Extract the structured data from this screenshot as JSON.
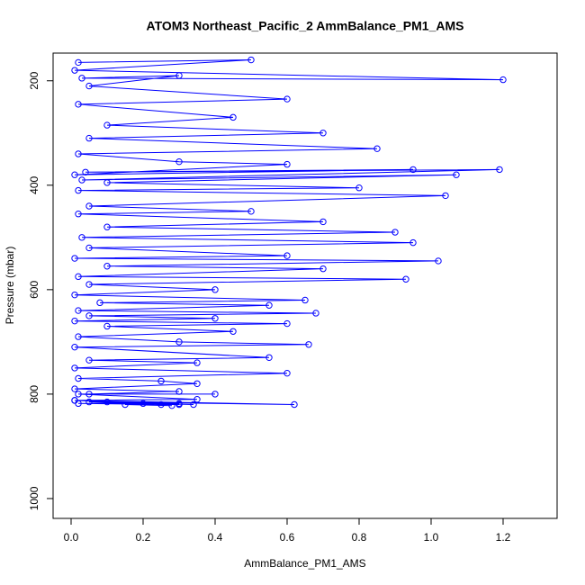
{
  "chart_data": {
    "type": "line",
    "title": "ATOM3 Northeast_Pacific_2 AmmBalance_PM1_AMS",
    "x_label": "AmmBalance_PM1_AMS",
    "y_label": "Pressure (mbar)",
    "xlim": [
      -0.05,
      1.35
    ],
    "ylim": [
      1038,
      147
    ],
    "y_reversed": true,
    "xticks": [
      {
        "value": 0,
        "label": "0.0"
      },
      0.2,
      0.4,
      0.6,
      0.8,
      {
        "value": 1,
        "label": "1.0"
      },
      1.2
    ],
    "yticks": [
      200,
      400,
      600,
      800,
      1000
    ],
    "markers": true,
    "series": [
      {
        "color": "#0000ff",
        "x": [
          0.02,
          0.5,
          0.01,
          1.2,
          0.03,
          0.3,
          0.05,
          0.6,
          0.02,
          0.45,
          0.1,
          0.7,
          0.05,
          0.85,
          0.02,
          0.3,
          0.6,
          0.01,
          0.95,
          0.04,
          1.19,
          0.03,
          1.07,
          0.1,
          0.8,
          0.02,
          1.04,
          0.05,
          0.5,
          0.02,
          0.7,
          0.1,
          0.9,
          0.03,
          0.95,
          0.05,
          0.6,
          0.01,
          1.02,
          0.1,
          0.7,
          0.02,
          0.93,
          0.05,
          0.4,
          0.01,
          0.65,
          0.08,
          0.55,
          0.02,
          0.68,
          0.05,
          0.4,
          0.01,
          0.6,
          0.1,
          0.45,
          0.02,
          0.3,
          0.66,
          0.01,
          0.55,
          0.05,
          0.35,
          0.01,
          0.6,
          0.02,
          0.25,
          0.35,
          0.01,
          0.3,
          0.05,
          0.4,
          0.02,
          0.35,
          0.01,
          0.62,
          0.1,
          0.3,
          0.02,
          0.2,
          0.34,
          0.05,
          0.25,
          0.01,
          0.3,
          0.15,
          0.28
        ],
        "values": [
          165,
          160,
          180,
          198,
          195,
          190,
          210,
          235,
          245,
          270,
          285,
          300,
          310,
          330,
          340,
          355,
          360,
          380,
          370,
          375,
          370,
          390,
          380,
          395,
          405,
          410,
          420,
          440,
          450,
          455,
          470,
          480,
          490,
          500,
          510,
          520,
          535,
          540,
          545,
          555,
          560,
          575,
          580,
          590,
          600,
          610,
          620,
          625,
          630,
          640,
          645,
          650,
          655,
          660,
          665,
          670,
          680,
          690,
          700,
          705,
          710,
          730,
          735,
          740,
          750,
          760,
          770,
          775,
          780,
          790,
          795,
          800,
          800,
          800,
          810,
          812,
          820,
          815,
          820,
          818,
          818,
          820,
          815,
          820,
          812,
          818,
          820,
          822
        ]
      }
    ]
  }
}
